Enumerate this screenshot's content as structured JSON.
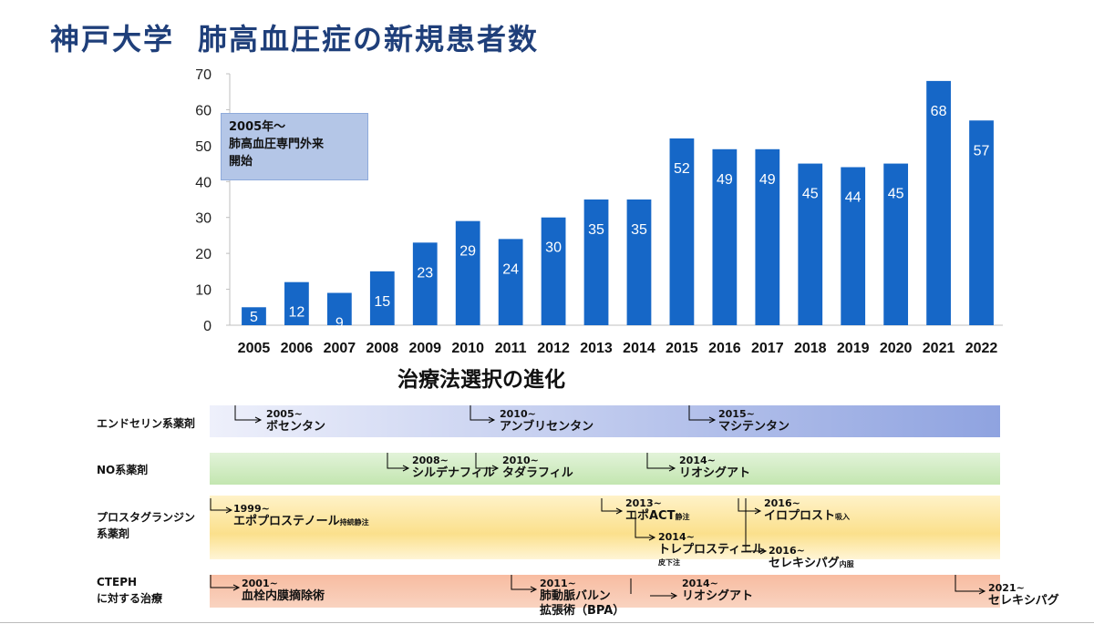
{
  "title_part1": "神戸大学",
  "title_part2": "肺高血圧症の新規患者数",
  "callout": {
    "line1": "2005年～",
    "line2": "肺高血圧専門外来",
    "line3": "開始"
  },
  "chart_data": {
    "type": "bar",
    "categories": [
      "2005",
      "2006",
      "2007",
      "2008",
      "2009",
      "2010",
      "2011",
      "2012",
      "2013",
      "2014",
      "2015",
      "2016",
      "2017",
      "2018",
      "2019",
      "2020",
      "2021",
      "2022"
    ],
    "values": [
      5,
      12,
      9,
      15,
      23,
      29,
      24,
      30,
      35,
      35,
      52,
      49,
      49,
      45,
      44,
      45,
      68,
      57
    ],
    "ylim": [
      0,
      70
    ],
    "yticks": [
      0,
      10,
      20,
      30,
      40,
      50,
      60,
      70
    ],
    "bar_color": "#1667c7",
    "data_labels": true,
    "grid": false
  },
  "evolution": {
    "title": "治療法選択の進化",
    "categories": [
      {
        "line1": "エンドセリン系薬剤",
        "line2": ""
      },
      {
        "line1": "NO系薬剤",
        "line2": ""
      },
      {
        "line1": "プロスタグランジン",
        "line2": "系薬剤"
      },
      {
        "line1": "CTEPH",
        "line2": "に対する治療"
      }
    ],
    "drugs": [
      {
        "year": "2005~",
        "name": "ボセンタン",
        "suffix": ""
      },
      {
        "year": "2010~",
        "name": "アンブリセンタン",
        "suffix": ""
      },
      {
        "year": "2015~",
        "name": "マシテンタン",
        "suffix": ""
      },
      {
        "year": "2008~",
        "name": "シルデナフィル",
        "suffix": ""
      },
      {
        "year": "2010~",
        "name": "タダラフィル",
        "suffix": ""
      },
      {
        "year": "2014~",
        "name": "リオシグアト",
        "suffix": ""
      },
      {
        "year": "1999~",
        "name": "エポプロステノール",
        "suffix": "持続静注"
      },
      {
        "year": "2013~",
        "name": "エポACT",
        "suffix": "静注"
      },
      {
        "year": "2014~",
        "name": "トレプロスティニル",
        "suffix": "皮下注"
      },
      {
        "year": "2016~",
        "name": "イロプロスト",
        "suffix": "吸入"
      },
      {
        "year": "2016~",
        "name": "セレキシパグ",
        "suffix": "内服"
      },
      {
        "year": "2001~",
        "name": "血栓内膜摘除術",
        "suffix": ""
      },
      {
        "year": "2011~",
        "name": "肺動脈バルン",
        "name2": "拡張術（BPA）",
        "suffix": ""
      },
      {
        "year": "2014~",
        "name": "リオシグアト",
        "suffix": ""
      },
      {
        "year": "2021~",
        "name": "セレキシパグ",
        "suffix": ""
      }
    ]
  }
}
